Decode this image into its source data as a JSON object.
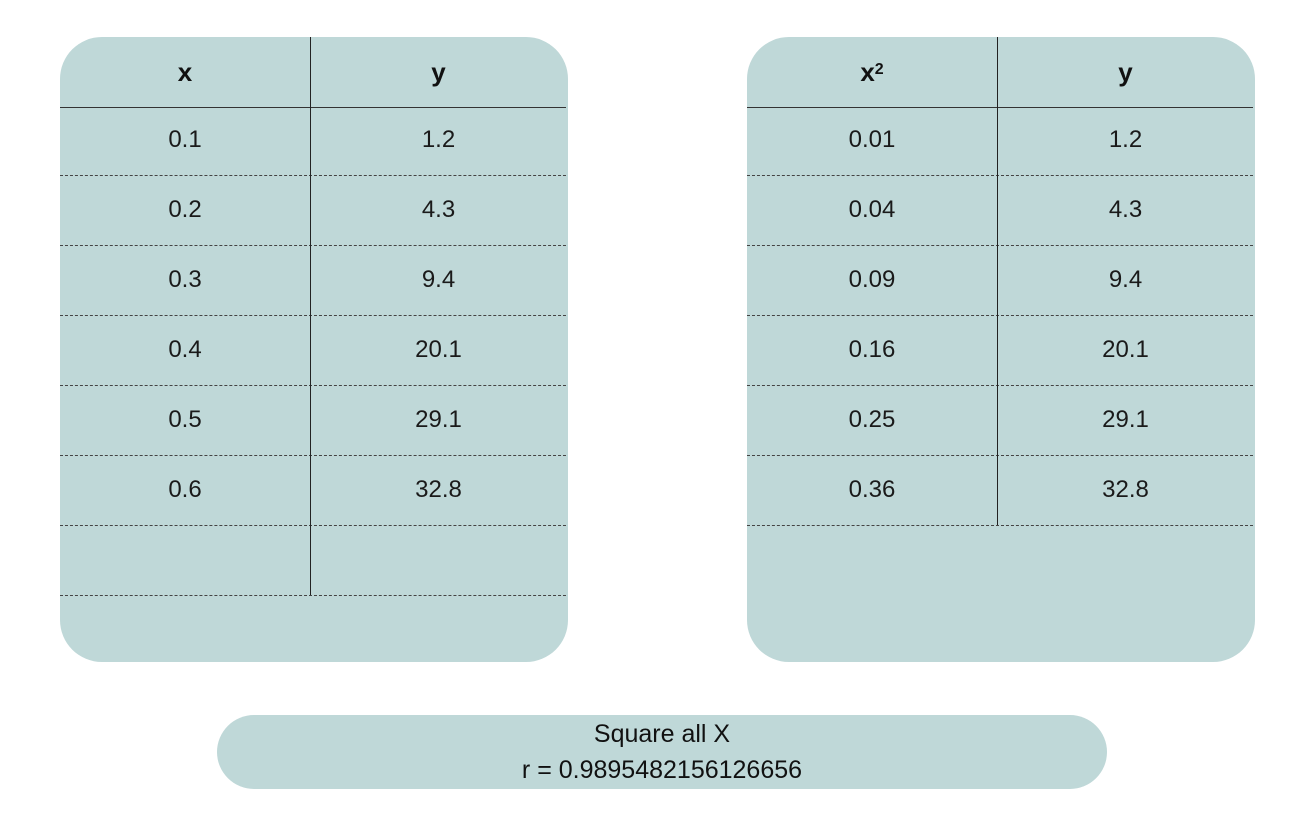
{
  "left_table": {
    "headers": [
      "x",
      "y"
    ],
    "rows": [
      [
        "0.1",
        "1.2"
      ],
      [
        "0.2",
        "4.3"
      ],
      [
        "0.3",
        "9.4"
      ],
      [
        "0.4",
        "20.1"
      ],
      [
        "0.5",
        "29.1"
      ],
      [
        "0.6",
        "32.8"
      ],
      [
        "",
        ""
      ]
    ]
  },
  "right_table": {
    "headers": [
      "x",
      "2",
      "y"
    ],
    "rows": [
      [
        "0.01",
        "1.2"
      ],
      [
        "0.04",
        "4.3"
      ],
      [
        "0.09",
        "9.4"
      ],
      [
        "0.16",
        "20.1"
      ],
      [
        "0.25",
        "29.1"
      ],
      [
        "0.36",
        "32.8"
      ]
    ]
  },
  "status": {
    "label": "Square all X",
    "result": "r = 0.9895482156126656"
  },
  "colors": {
    "panel": "#bfd8d8",
    "background": "#ffffff"
  }
}
